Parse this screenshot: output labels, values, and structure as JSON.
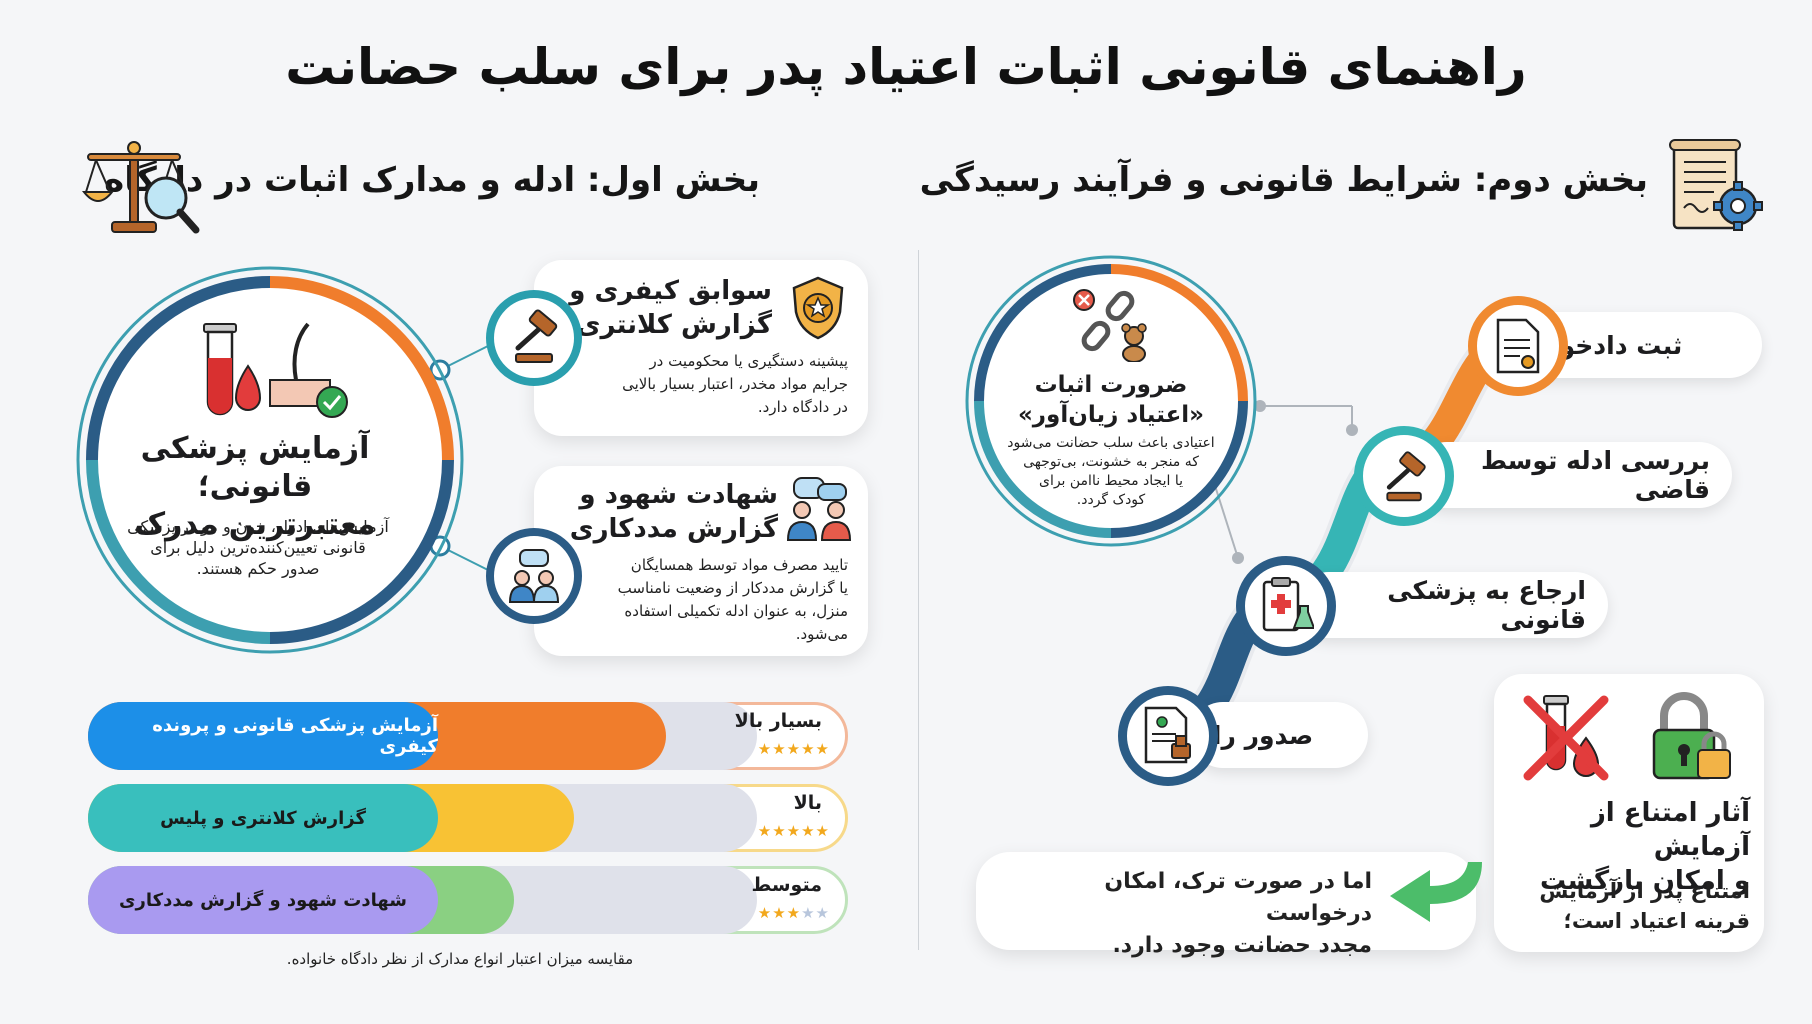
{
  "title": "راهنمای قانونی اثبات اعتیاد پدر برای سلب حضانت",
  "section1": {
    "title": "بخش اول: ادله و مدارک اثبات در دادگاه",
    "icon": "scales-magnifier-icon",
    "main_card": {
      "title_line1": "آزمایش پزشکی قانونی؛",
      "title_line2": "معتبرترین مدرک",
      "text_line1": "آزمایش‌های ادرار، خون و مو در پزشکی",
      "text_line2": "قانونی تعیین‌کننده‌ترین دلیل برای",
      "text_line3": "صدور حکم هستند.",
      "icon": "test-tube-blood-hair-icon"
    },
    "card_police": {
      "title_line1": "سوابق کیفری و",
      "title_line2": "گزارش کلانتری",
      "text_line1": "پیشینه دستگیری یا محکومیت در",
      "text_line2": "جرایم مواد مخدر، اعتبار بسیار بالایی",
      "text_line3": "در دادگاه دارد.",
      "icon": "police-badge-icon"
    },
    "card_witness": {
      "title_line1": "شهادت شهود و",
      "title_line2": "گزارش مددکاری",
      "text_line1": "تایید مصرف مواد توسط همسایگان",
      "text_line2": "یا گزارش مددکار از وضعیت نامناسب",
      "text_line3": "منزل، به عنوان ادله تکمیلی استفاده",
      "text_line4": "می‌شود.",
      "icon": "witnesses-icon"
    },
    "bars": [
      {
        "label": "آزمایش پزشکی قانونی و پرونده کیفری",
        "rating": "بسیار بالا",
        "stars": 5,
        "max": 5,
        "color": "#f07d2c",
        "pill": "#1c8fe8"
      },
      {
        "label": "گزارش کلانتری و پلیس",
        "rating": "بالا",
        "stars": 5,
        "max": 5,
        "color": "#f8c234",
        "pill": "#39bfbd"
      },
      {
        "label": "شهادت شهود و گزارش مددکاری",
        "rating": "متوسط",
        "stars": 3,
        "max": 5,
        "color": "#8ad082",
        "pill": "#a99af0"
      }
    ],
    "footnote": "مقایسه میزان اعتبار انواع مدارک از نظر دادگاه خانواده."
  },
  "section2": {
    "title": "بخش دوم: شرایط قانونی و فرآیند رسیدگی",
    "icon": "document-gear-icon",
    "harm_card": {
      "title_line1": "ضرورت اثبات",
      "title_line2": "«اعتیاد زیان‌آور»",
      "text_line1": "اعتیادی باعث سلب حضانت می‌شود",
      "text_line2": "که منجر به خشونت، بی‌توجهی",
      "text_line3": "یا ایجاد محیط ناامن برای",
      "text_line4": "کودک گردد.",
      "icon": "broken-chain-teddy-icon"
    },
    "steps": [
      {
        "label": "ثبت دادخواست",
        "icon": "petition-document-icon"
      },
      {
        "label": "بررسی ادله توسط قاضی",
        "icon": "gavel-icon"
      },
      {
        "label": "ارجاع به پزشکی قانونی",
        "icon": "medical-clipboard-icon"
      },
      {
        "label": "صدور رای",
        "icon": "verdict-document-icon"
      }
    ],
    "refusal": {
      "title_line1": "آثار امتناع از آزمایش",
      "title_line2": "و امکان بازگشت",
      "text_line1": "امتناع پدر از آزمایش",
      "text_line2": "قرینه اعتیاد است؛",
      "note_line1": "اما در صورت ترک، امکان درخواست",
      "note_line2": "مجدد حضانت وجود دارد.",
      "icon_a": "no-blood-test-icon",
      "icon_b": "padlock-icon"
    }
  }
}
